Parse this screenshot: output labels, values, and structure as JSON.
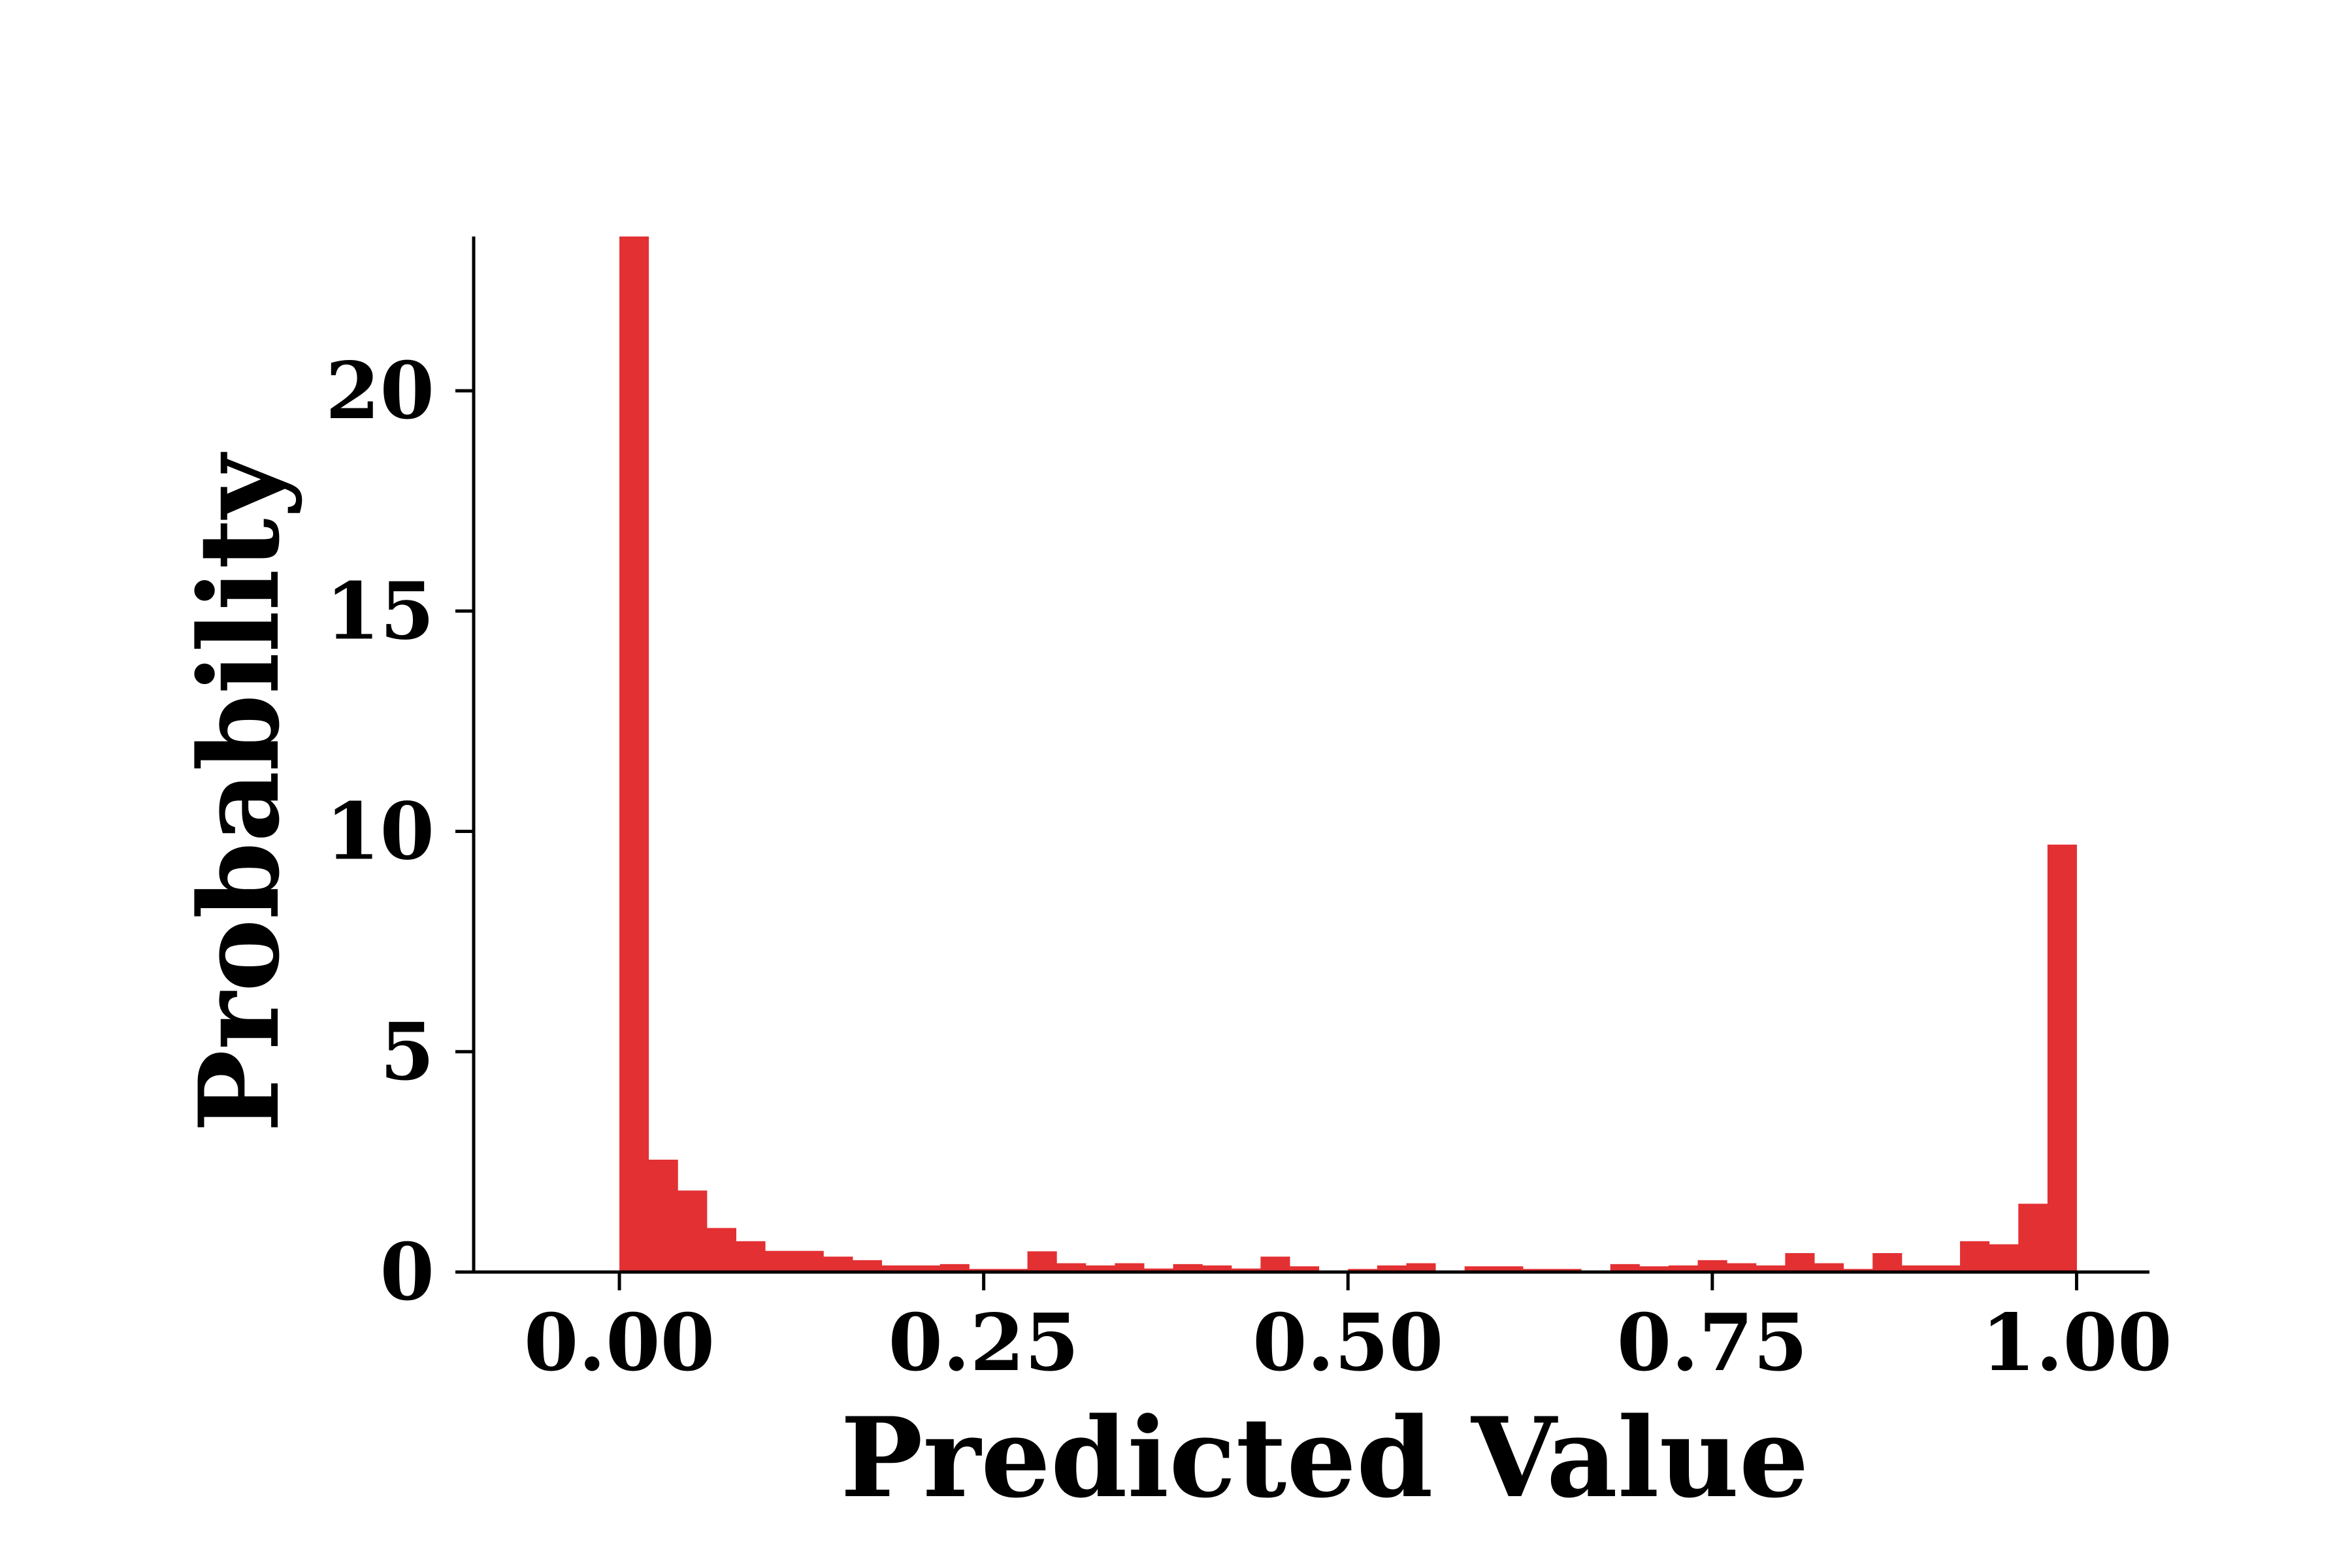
{
  "chart_data": {
    "type": "bar",
    "subtype": "histogram",
    "xlabel": "Predicted Value",
    "ylabel": "Probability",
    "xlim": [
      -0.1,
      1.05
    ],
    "ylim": [
      0,
      23.5
    ],
    "xticks": [
      0.0,
      0.25,
      0.5,
      0.75,
      1.0
    ],
    "xtick_labels": [
      "0.00",
      "0.25",
      "0.50",
      "0.75",
      "1.00"
    ],
    "yticks": [
      0,
      5,
      10,
      15,
      20
    ],
    "ytick_labels": [
      "0",
      "5",
      "10",
      "15",
      "20"
    ],
    "bin_width": 0.02,
    "bin_start": 0.0,
    "values": [
      23.5,
      2.55,
      1.85,
      1.0,
      0.7,
      0.48,
      0.48,
      0.35,
      0.27,
      0.15,
      0.15,
      0.18,
      0.07,
      0.07,
      0.47,
      0.2,
      0.15,
      0.2,
      0.08,
      0.18,
      0.15,
      0.08,
      0.35,
      0.13,
      0.0,
      0.07,
      0.15,
      0.2,
      0.0,
      0.13,
      0.13,
      0.07,
      0.07,
      0.0,
      0.18,
      0.13,
      0.15,
      0.27,
      0.2,
      0.15,
      0.43,
      0.2,
      0.07,
      0.43,
      0.15,
      0.15,
      0.7,
      0.63,
      1.55,
      9.7
    ],
    "grid": false,
    "legend": "none",
    "colors": {
      "bar": "#e33033",
      "axis": "#000000",
      "background": "#ffffff"
    }
  }
}
